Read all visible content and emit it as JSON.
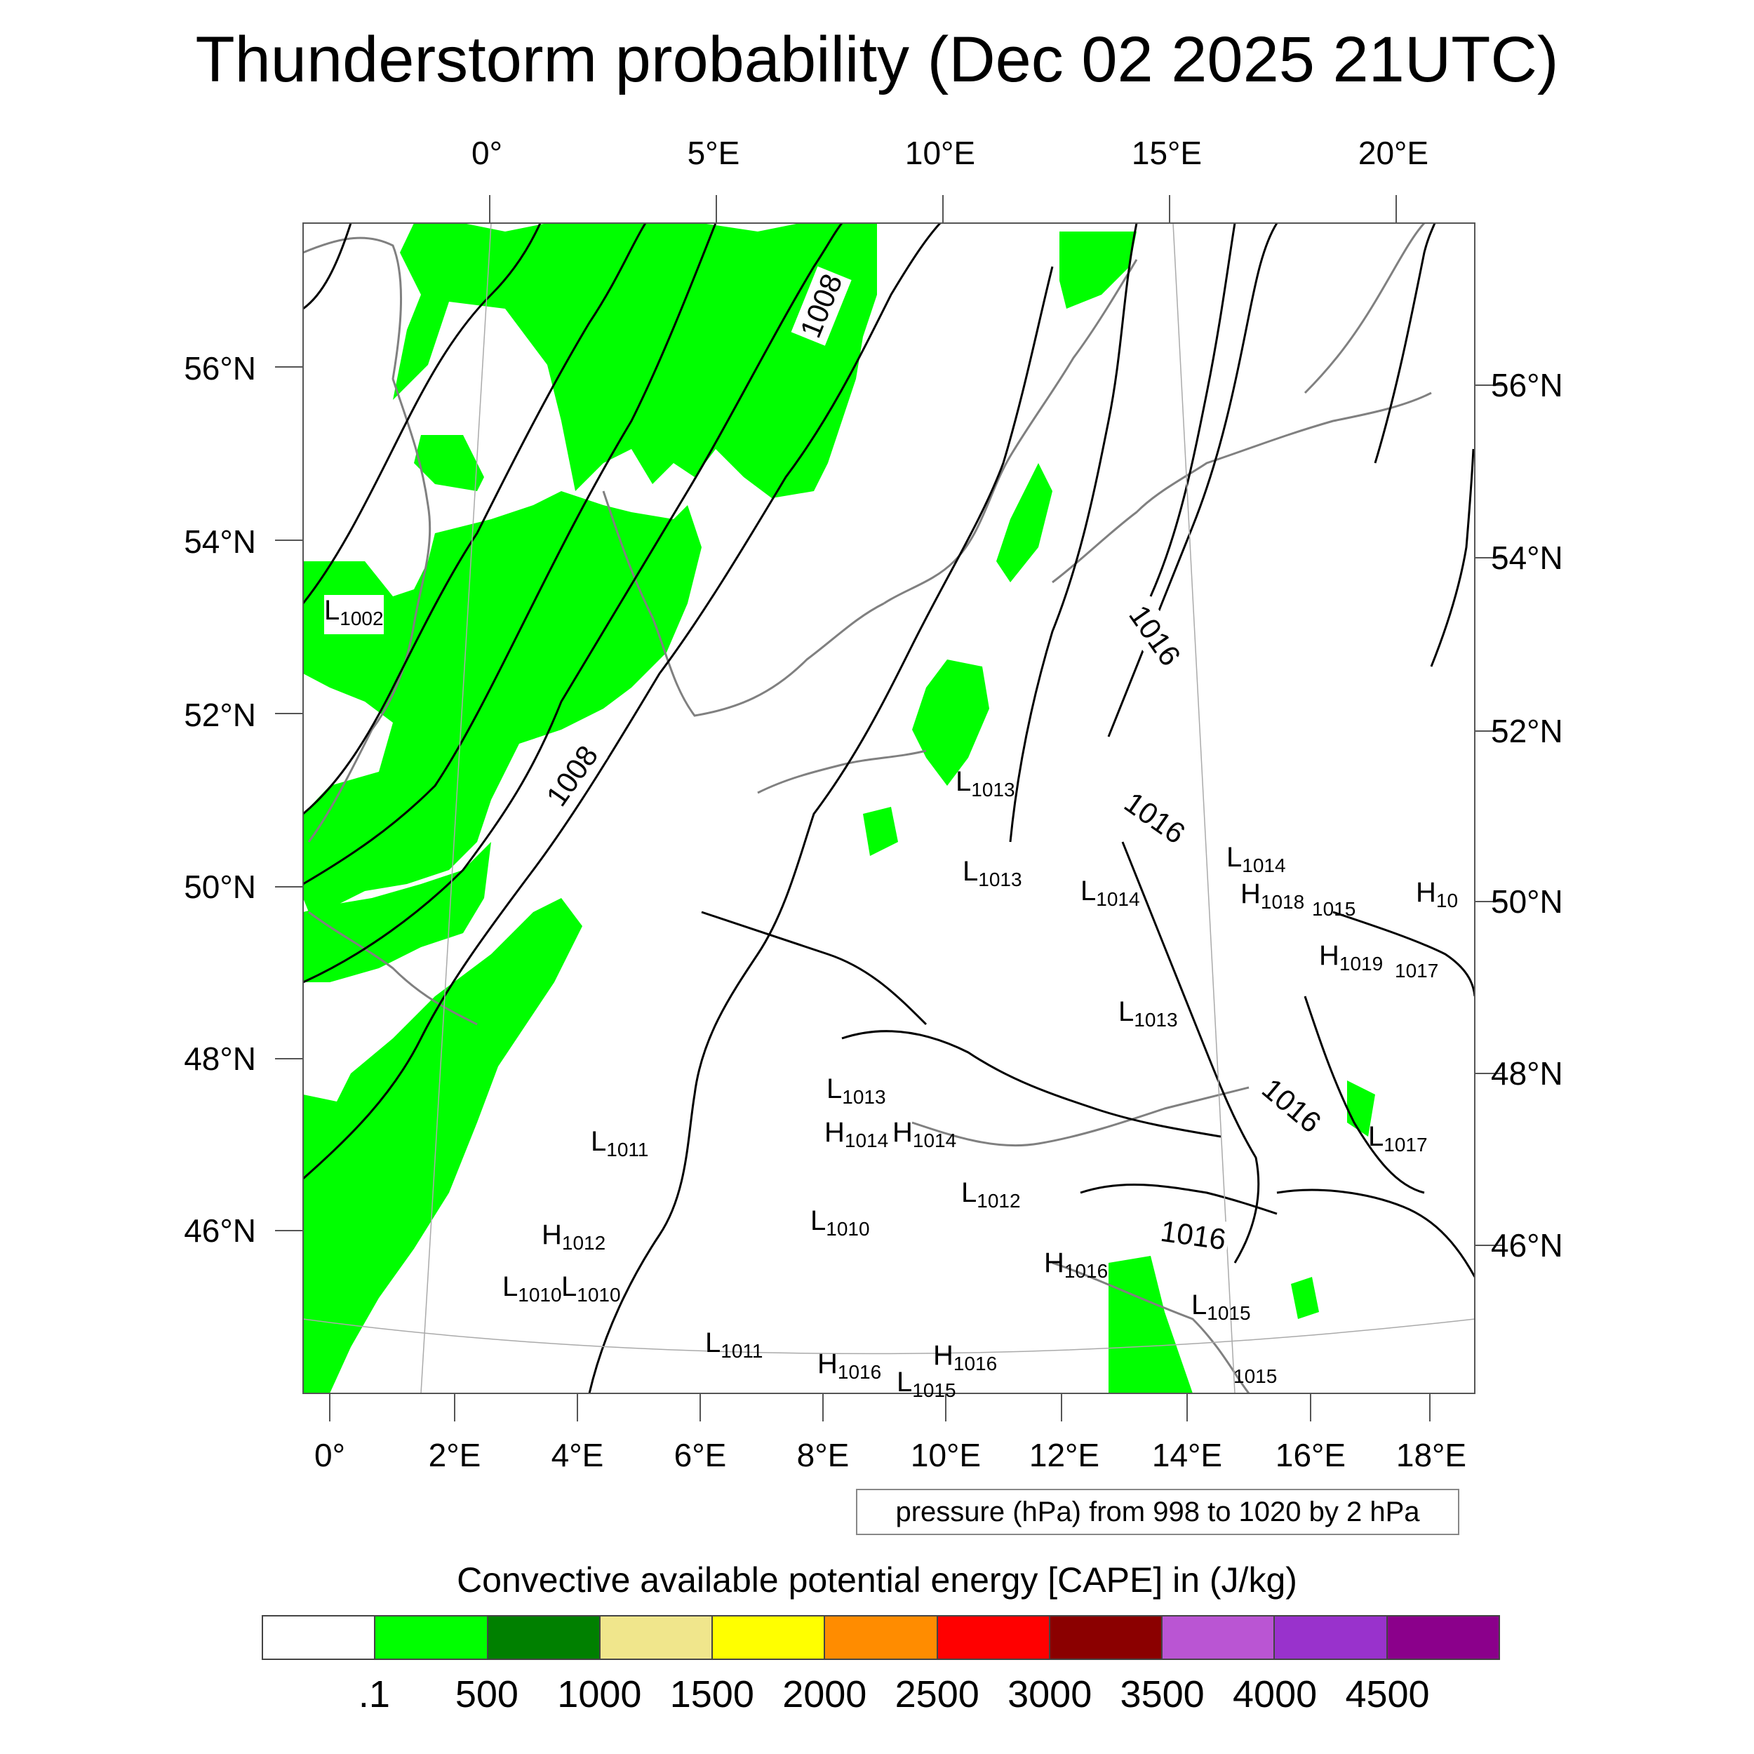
{
  "title": "Thunderstorm probability (Dec 02 2025 21UTC)",
  "axes": {
    "top_lon_labels": [
      "0°",
      "5°E",
      "10°E",
      "15°E",
      "20°E"
    ],
    "bottom_lon_labels": [
      "0°",
      "2°E",
      "4°E",
      "6°E",
      "8°E",
      "10°E",
      "12°E",
      "14°E",
      "16°E",
      "18°E"
    ],
    "left_lat_labels": [
      "56°N",
      "54°N",
      "52°N",
      "50°N",
      "48°N",
      "46°N"
    ],
    "right_lat_labels": [
      "56°N",
      "54°N",
      "52°N",
      "50°N",
      "48°N",
      "46°N"
    ]
  },
  "contour_info": "pressure (hPa) from 998 to 1020 by 2 hPa",
  "contour_labels": [
    "1008",
    "1008",
    "1016",
    "1016",
    "1016",
    "1016"
  ],
  "pressure_centers": [
    {
      "type": "L",
      "value": "1002"
    },
    {
      "type": "L",
      "value": "1013"
    },
    {
      "type": "L",
      "value": "1013"
    },
    {
      "type": "L",
      "value": "1014"
    },
    {
      "type": "L",
      "value": "1014"
    },
    {
      "type": "H",
      "value": "1018"
    },
    {
      "type": "",
      "value": "1015"
    },
    {
      "type": "H",
      "value": "10"
    },
    {
      "type": "H",
      "value": "1019"
    },
    {
      "type": "",
      "value": "1017"
    },
    {
      "type": "L",
      "value": "1013"
    },
    {
      "type": "L",
      "value": "1013"
    },
    {
      "type": "H",
      "value": "1014"
    },
    {
      "type": "H",
      "value": "1014"
    },
    {
      "type": "L",
      "value": "1011"
    },
    {
      "type": "L",
      "value": "1012"
    },
    {
      "type": "H",
      "value": "1012"
    },
    {
      "type": "L",
      "value": "1010"
    },
    {
      "type": "L",
      "value": "1010"
    },
    {
      "type": "L",
      "value": "1010"
    },
    {
      "type": "L",
      "value": "1011"
    },
    {
      "type": "H",
      "value": "1016"
    },
    {
      "type": "H",
      "value": "1016"
    },
    {
      "type": "H",
      "value": "1016"
    },
    {
      "type": "L",
      "value": "1015"
    },
    {
      "type": "L",
      "value": "1015"
    },
    {
      "type": "L",
      "value": "1017"
    },
    {
      "type": "",
      "value": "1015"
    }
  ],
  "colorbar": {
    "title": "Convective available potential energy [CAPE] in (J/kg)",
    "colors": [
      "#ffffff",
      "#00ff00",
      "#008000",
      "#f0e68c",
      "#ffff00",
      "#ff8c00",
      "#ff0000",
      "#8b0000",
      "#ba55d3",
      "#9932cc",
      "#8b008b"
    ],
    "tick_labels": [
      ".1",
      "500",
      "1000",
      "1500",
      "2000",
      "2500",
      "3000",
      "3500",
      "4000",
      "4500"
    ]
  },
  "colors": {
    "cape_green": "#00ff00",
    "coastline": "#808080",
    "isobar": "#000000"
  }
}
